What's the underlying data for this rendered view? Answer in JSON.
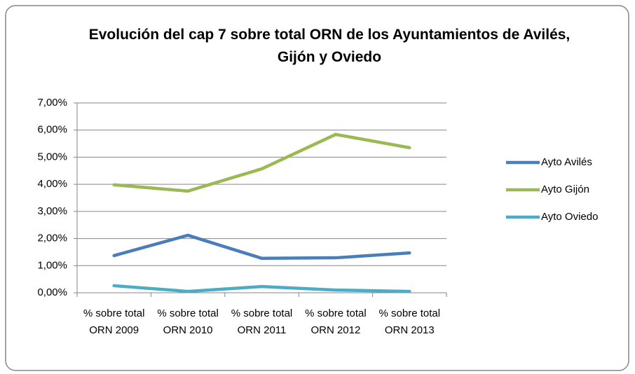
{
  "chart_data": {
    "type": "line",
    "title": "Evolución del cap 7 sobre total ORN de los Ayuntamientos de Avilés, Gijón y Oviedo",
    "categories": [
      "% sobre total ORN 2009",
      "% sobre total ORN 2010",
      "% sobre total ORN 2011",
      "% sobre total ORN 2012",
      "% sobre total ORN 2013"
    ],
    "series": [
      {
        "name": "Ayto Avilés",
        "color": "#4a7ebb",
        "values": [
          1.37,
          2.12,
          1.27,
          1.29,
          1.47
        ]
      },
      {
        "name": "Ayto Gijón",
        "color": "#98b954",
        "values": [
          3.98,
          3.75,
          4.57,
          5.84,
          5.35
        ]
      },
      {
        "name": "Ayto Oviedo",
        "color": "#4bacc6",
        "values": [
          0.26,
          0.05,
          0.23,
          0.1,
          0.05
        ]
      }
    ],
    "ylim": [
      0,
      7
    ],
    "yticks": [
      {
        "value": 0,
        "label": "0,00%"
      },
      {
        "value": 1,
        "label": "1,00%"
      },
      {
        "value": 2,
        "label": "2,00%"
      },
      {
        "value": 3,
        "label": "3,00%"
      },
      {
        "value": 4,
        "label": "4,00%"
      },
      {
        "value": 5,
        "label": "5,00%"
      },
      {
        "value": 6,
        "label": "6,00%"
      },
      {
        "value": 7,
        "label": "7,00%"
      }
    ],
    "grid": true,
    "legend": "right"
  }
}
